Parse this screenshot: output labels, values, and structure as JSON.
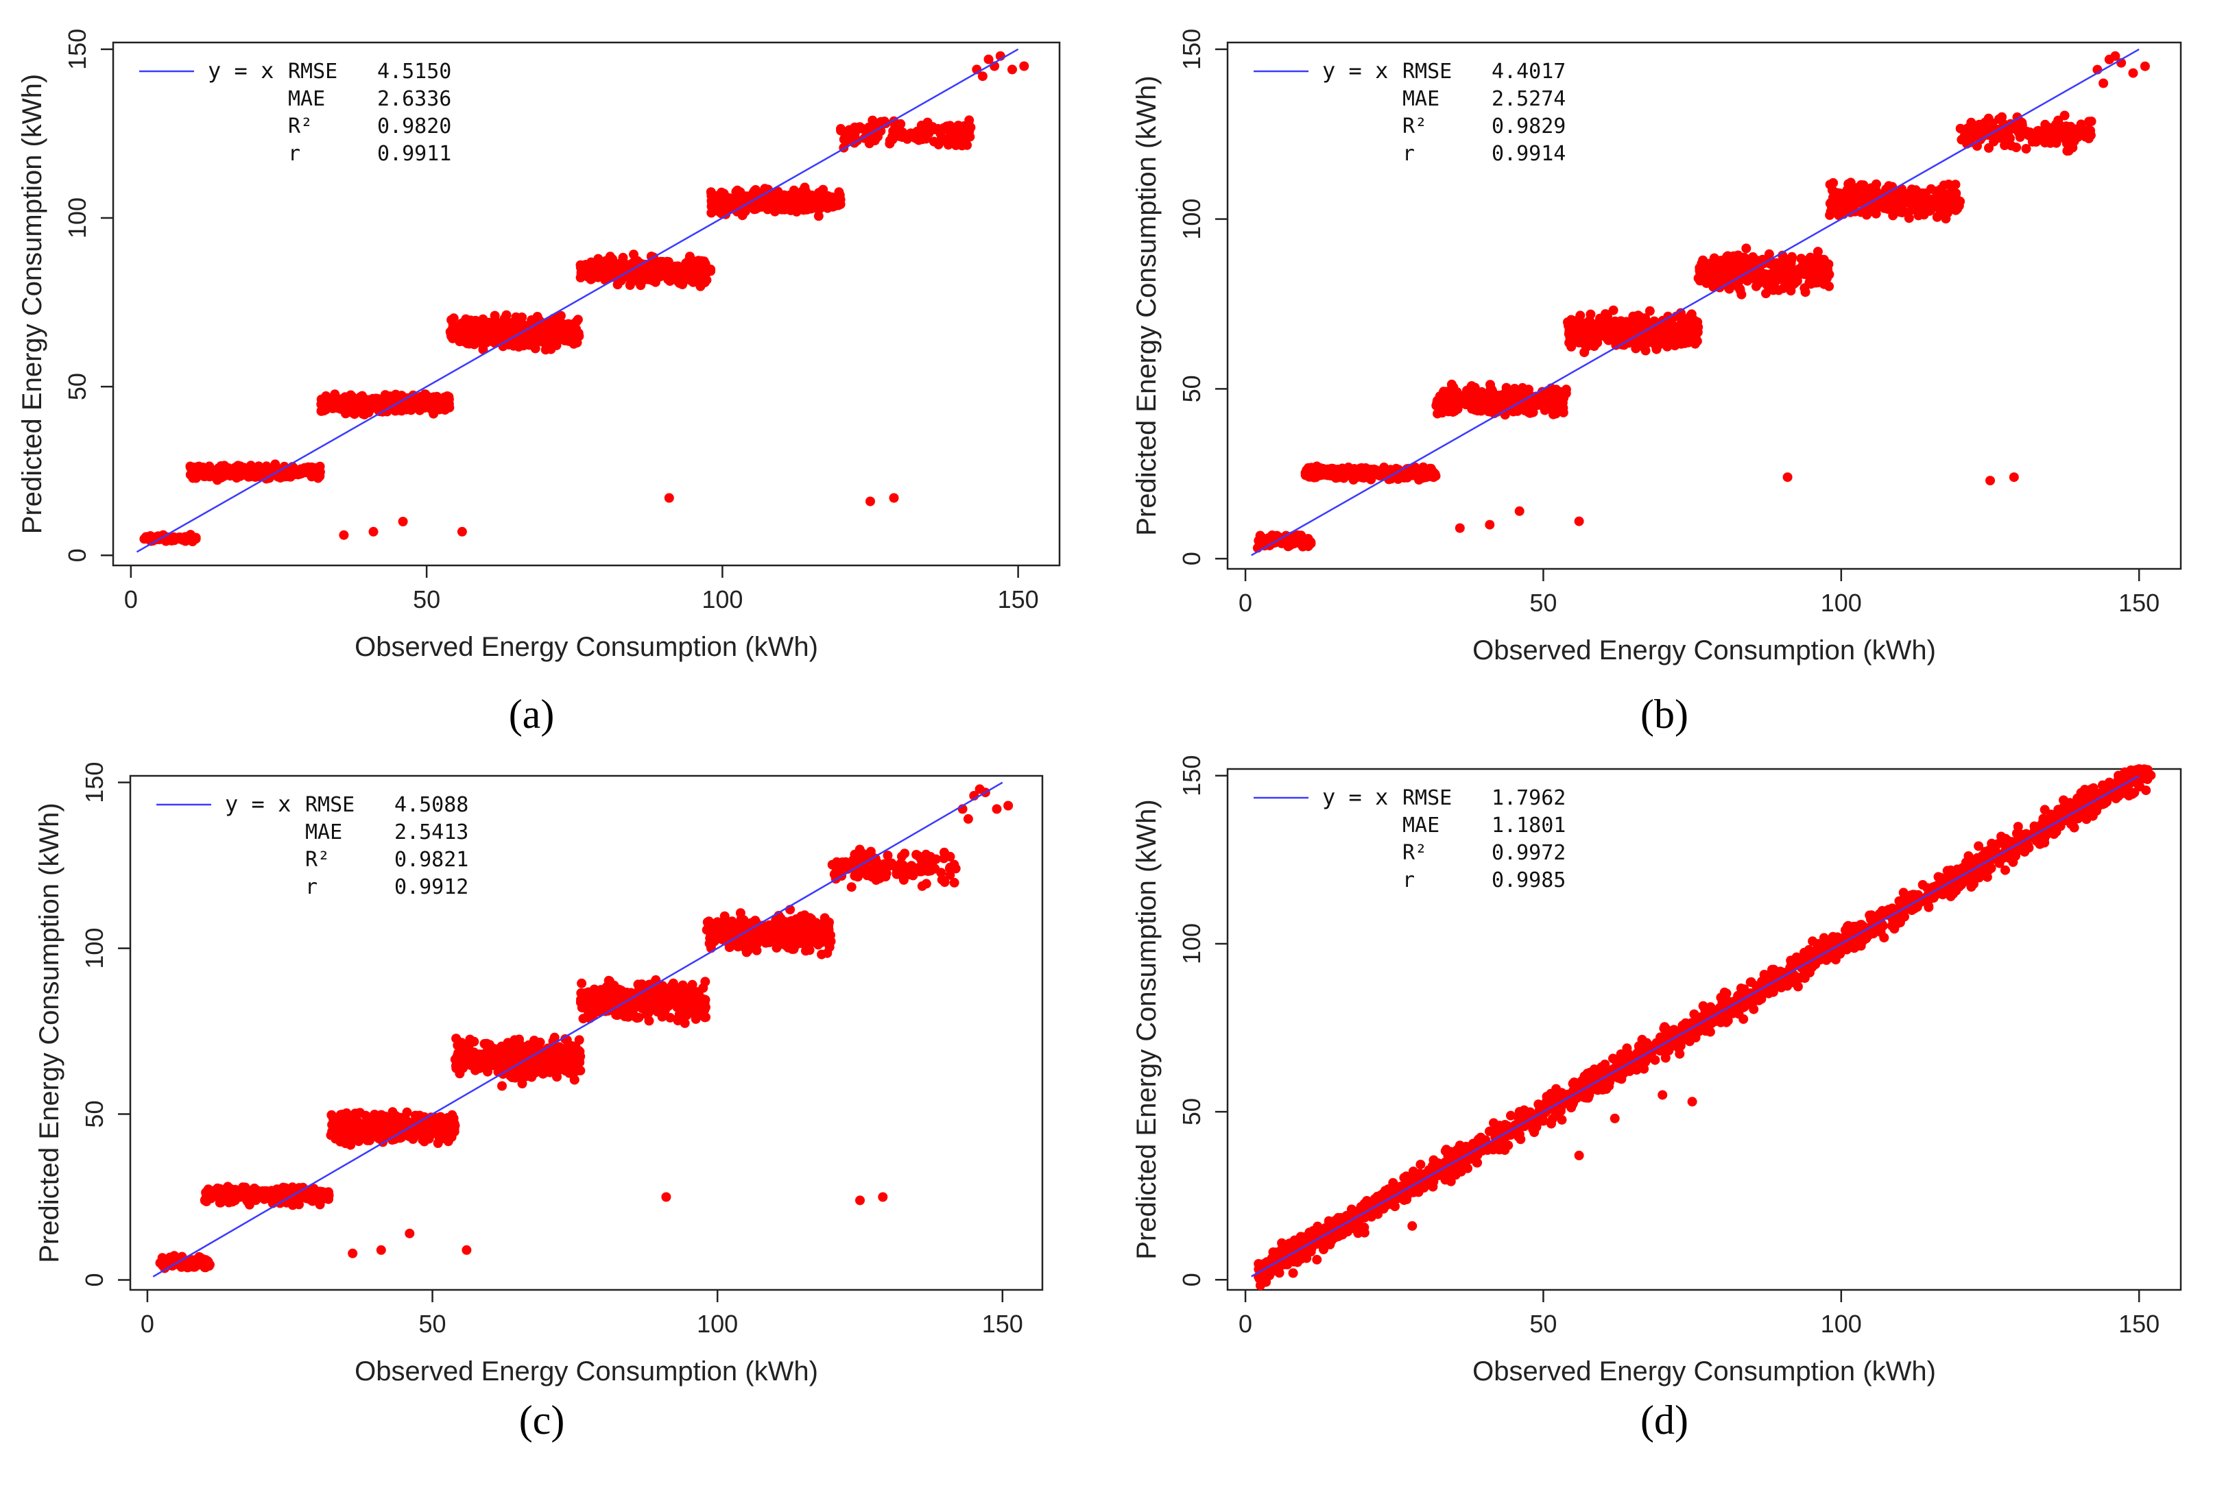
{
  "figure": {
    "panels": [
      "a",
      "b",
      "c",
      "d"
    ]
  },
  "colors": {
    "points": "#ff0000",
    "reference_line": "#3b3bff",
    "frame": "#222222"
  },
  "chart_data": [
    {
      "id": "a",
      "type": "scatter",
      "caption": "(a)",
      "xlabel": "Observed Energy Consumption (kWh)",
      "ylabel": "Predicted Energy Consumption (kWh)",
      "xlim": [
        -3,
        157
      ],
      "ylim": [
        -3,
        152
      ],
      "xticks": [
        0,
        50,
        100,
        150
      ],
      "xtick_labels": [
        "0",
        "50",
        "100",
        "150"
      ],
      "yticks": [
        0,
        50,
        100,
        150
      ],
      "ytick_labels": [
        "0",
        "50",
        "100",
        "150"
      ],
      "legend": {
        "label": "y = x",
        "position": "top-left"
      },
      "metrics": [
        {
          "name": "RMSE",
          "value": "4.5150"
        },
        {
          "name": "MAE",
          "value": "2.6336"
        },
        {
          "name": "R²",
          "value": "0.9820"
        },
        {
          "name": "r",
          "value": "0.9911"
        }
      ],
      "reference_line": {
        "from": [
          1,
          1
        ],
        "to": [
          150,
          150
        ]
      },
      "clusters": [
        {
          "x": [
            2,
            11
          ],
          "y": [
            3.5,
            6.5
          ],
          "n": 70
        },
        {
          "x": [
            10,
            32
          ],
          "y": [
            22,
            27.5
          ],
          "n": 240
        },
        {
          "x": [
            32,
            54
          ],
          "y": [
            41,
            49
          ],
          "n": 320
        },
        {
          "x": [
            54,
            76
          ],
          "y": [
            60,
            72
          ],
          "n": 330
        },
        {
          "x": [
            76,
            98
          ],
          "y": [
            79,
            90
          ],
          "n": 330
        },
        {
          "x": [
            98,
            120
          ],
          "y": [
            100,
            110
          ],
          "n": 300
        },
        {
          "x": [
            120,
            142
          ],
          "y": [
            120,
            130
          ],
          "n": 140
        }
      ],
      "points": [
        [
          36,
          6
        ],
        [
          41,
          7
        ],
        [
          46,
          10
        ],
        [
          56,
          7
        ],
        [
          91,
          17
        ],
        [
          125,
          16
        ],
        [
          129,
          17
        ],
        [
          143,
          144
        ],
        [
          144,
          142
        ],
        [
          145,
          147
        ],
        [
          146,
          145
        ],
        [
          147,
          148
        ],
        [
          149,
          144
        ],
        [
          151,
          145
        ]
      ]
    },
    {
      "id": "b",
      "type": "scatter",
      "caption": "(b)",
      "xlabel": "Observed Energy Consumption (kWh)",
      "ylabel": "Predicted Energy Consumption (kWh)",
      "xlim": [
        -3,
        157
      ],
      "ylim": [
        -3,
        152
      ],
      "xticks": [
        0,
        50,
        100,
        150
      ],
      "xtick_labels": [
        "0",
        "50",
        "100",
        "150"
      ],
      "yticks": [
        0,
        50,
        100,
        150
      ],
      "ytick_labels": [
        "0",
        "50",
        "100",
        "150"
      ],
      "legend": {
        "label": "y = x",
        "position": "top-left"
      },
      "metrics": [
        {
          "name": "RMSE",
          "value": "4.4017"
        },
        {
          "name": "MAE",
          "value": "2.5274"
        },
        {
          "name": "R²",
          "value": "0.9829"
        },
        {
          "name": "r",
          "value": "0.9914"
        }
      ],
      "reference_line": {
        "from": [
          1,
          1
        ],
        "to": [
          150,
          150
        ]
      },
      "clusters": [
        {
          "x": [
            2,
            11
          ],
          "y": [
            2,
            8
          ],
          "n": 80
        },
        {
          "x": [
            10,
            32
          ],
          "y": [
            22.5,
            28
          ],
          "n": 240
        },
        {
          "x": [
            32,
            54
          ],
          "y": [
            41,
            52
          ],
          "n": 320
        },
        {
          "x": [
            54,
            76
          ],
          "y": [
            60,
            74
          ],
          "n": 330
        },
        {
          "x": [
            76,
            98
          ],
          "y": [
            77,
            92
          ],
          "n": 330
        },
        {
          "x": [
            98,
            120
          ],
          "y": [
            99,
            112
          ],
          "n": 300
        },
        {
          "x": [
            120,
            142
          ],
          "y": [
            119,
            132
          ],
          "n": 140
        }
      ],
      "points": [
        [
          36,
          9
        ],
        [
          41,
          10
        ],
        [
          46,
          14
        ],
        [
          56,
          11
        ],
        [
          91,
          24
        ],
        [
          125,
          23
        ],
        [
          129,
          24
        ],
        [
          143,
          144
        ],
        [
          144,
          140
        ],
        [
          145,
          147
        ],
        [
          146,
          148
        ],
        [
          147,
          146
        ],
        [
          149,
          143
        ],
        [
          151,
          145
        ]
      ]
    },
    {
      "id": "c",
      "type": "scatter",
      "caption": "(c)",
      "xlabel": "Observed Energy Consumption (kWh)",
      "ylabel": "Predicted Energy Consumption (kWh)",
      "xlim": [
        -3,
        157
      ],
      "ylim": [
        -3,
        152
      ],
      "xticks": [
        0,
        50,
        100,
        150
      ],
      "xtick_labels": [
        "0",
        "50",
        "100",
        "150"
      ],
      "yticks": [
        0,
        50,
        100,
        150
      ],
      "ytick_labels": [
        "0",
        "50",
        "100",
        "150"
      ],
      "legend": {
        "label": "y = x",
        "position": "top-left"
      },
      "metrics": [
        {
          "name": "RMSE",
          "value": "4.5088"
        },
        {
          "name": "MAE",
          "value": "2.5413"
        },
        {
          "name": "R²",
          "value": "0.9821"
        },
        {
          "name": "r",
          "value": "0.9912"
        }
      ],
      "reference_line": {
        "from": [
          1,
          1
        ],
        "to": [
          150,
          150
        ]
      },
      "clusters": [
        {
          "x": [
            2,
            11
          ],
          "y": [
            2,
            8
          ],
          "n": 80
        },
        {
          "x": [
            10,
            32
          ],
          "y": [
            22,
            29
          ],
          "n": 240
        },
        {
          "x": [
            32,
            54
          ],
          "y": [
            40,
            52
          ],
          "n": 320
        },
        {
          "x": [
            54,
            76
          ],
          "y": [
            58,
            75
          ],
          "n": 330
        },
        {
          "x": [
            76,
            98
          ],
          "y": [
            76,
            92
          ],
          "n": 330
        },
        {
          "x": [
            98,
            120
          ],
          "y": [
            97,
            112
          ],
          "n": 300
        },
        {
          "x": [
            120,
            142
          ],
          "y": [
            117,
            132
          ],
          "n": 140
        }
      ],
      "points": [
        [
          36,
          8
        ],
        [
          41,
          9
        ],
        [
          46,
          14
        ],
        [
          56,
          9
        ],
        [
          91,
          25
        ],
        [
          125,
          24
        ],
        [
          129,
          25
        ],
        [
          143,
          142
        ],
        [
          144,
          139
        ],
        [
          145,
          146
        ],
        [
          146,
          148
        ],
        [
          147,
          147
        ],
        [
          149,
          142
        ],
        [
          151,
          143
        ]
      ]
    },
    {
      "id": "d",
      "type": "scatter",
      "caption": "(d)",
      "xlabel": "Observed Energy Consumption (kWh)",
      "ylabel": "Predicted Energy Consumption (kWh)",
      "xlim": [
        -3,
        157
      ],
      "ylim": [
        -3,
        152
      ],
      "xticks": [
        0,
        50,
        100,
        150
      ],
      "xtick_labels": [
        "0",
        "50",
        "100",
        "150"
      ],
      "yticks": [
        0,
        50,
        100,
        150
      ],
      "ytick_labels": [
        "0",
        "50",
        "100",
        "150"
      ],
      "legend": {
        "label": "y = x",
        "position": "top-left"
      },
      "metrics": [
        {
          "name": "RMSE",
          "value": "1.7962"
        },
        {
          "name": "MAE",
          "value": "1.1801"
        },
        {
          "name": "R²",
          "value": "0.9972"
        },
        {
          "name": "r",
          "value": "0.9985"
        }
      ],
      "reference_line": {
        "from": [
          1,
          1
        ],
        "to": [
          150,
          150
        ]
      },
      "diagonal_band": {
        "x": [
          2,
          152
        ],
        "spread": 3.2,
        "n": 1800
      },
      "points": [
        [
          56,
          37
        ],
        [
          75,
          53
        ],
        [
          70,
          55
        ],
        [
          62,
          48
        ],
        [
          28,
          16
        ],
        [
          20,
          14
        ],
        [
          12,
          6
        ],
        [
          8,
          2
        ],
        [
          150,
          152
        ],
        [
          145,
          148
        ],
        [
          142,
          146
        ],
        [
          34,
          37
        ],
        [
          36,
          40
        ],
        [
          46,
          50
        ]
      ]
    }
  ]
}
